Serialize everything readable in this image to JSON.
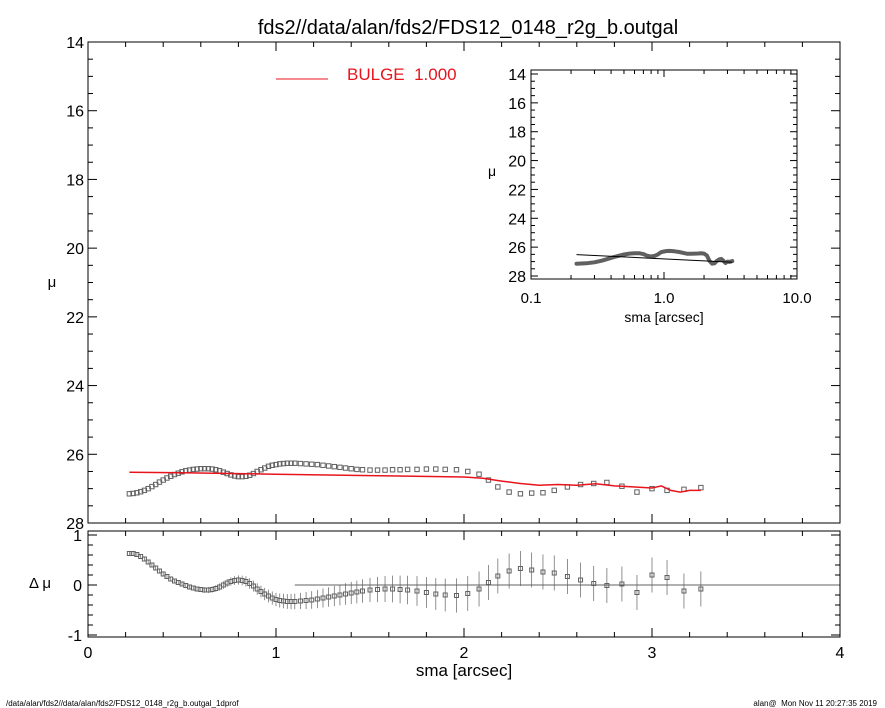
{
  "title": "fds2//data/alan/fds2/FDS12_0148_r2g_b.outgal",
  "footer": {
    "left": "/data/alan/fds2//data/alan/fds2/FDS12_0148_r2g_b.outgal_1dprof",
    "right": "alan@  Mon Nov 11 20:27:35 2019"
  },
  "colors": {
    "model": "#e8141c",
    "data": "#606060",
    "axes": "#000000"
  },
  "chart_data": [
    {
      "id": "main",
      "type": "scatter",
      "xlabel": "",
      "ylabel": "μ",
      "xlim": [
        0,
        4
      ],
      "ylim": [
        28,
        14
      ],
      "yticks": [
        "14",
        "16",
        "18",
        "20",
        "22",
        "24",
        "26",
        "28"
      ],
      "legend": {
        "label": "BULGE  1.000",
        "placement": "top-center"
      },
      "series": [
        {
          "name": "",
          "style": "squares",
          "x": [
            0.22,
            0.24,
            0.26,
            0.28,
            0.3,
            0.32,
            0.34,
            0.36,
            0.38,
            0.4,
            0.42,
            0.44,
            0.46,
            0.48,
            0.5,
            0.52,
            0.54,
            0.56,
            0.58,
            0.6,
            0.62,
            0.64,
            0.66,
            0.68,
            0.7,
            0.72,
            0.74,
            0.76,
            0.78,
            0.8,
            0.82,
            0.84,
            0.86,
            0.88,
            0.9,
            0.92,
            0.94,
            0.96,
            0.98,
            1.0,
            1.02,
            1.04,
            1.06,
            1.08,
            1.1,
            1.13,
            1.16,
            1.19,
            1.22,
            1.25,
            1.28,
            1.31,
            1.34,
            1.37,
            1.4,
            1.43,
            1.46,
            1.5,
            1.54,
            1.58,
            1.62,
            1.66,
            1.7,
            1.75,
            1.8,
            1.85,
            1.9,
            1.96,
            2.02,
            2.08,
            2.13,
            2.18,
            2.24,
            2.3,
            2.36,
            2.42,
            2.48,
            2.55,
            2.62,
            2.69,
            2.76,
            2.84,
            2.92,
            3.0,
            3.08,
            3.17,
            3.26
          ],
          "y": [
            27.15,
            27.14,
            27.12,
            27.09,
            27.05,
            27.0,
            26.94,
            26.88,
            26.81,
            26.75,
            26.69,
            26.64,
            26.59,
            26.55,
            26.51,
            26.48,
            26.46,
            26.44,
            26.43,
            26.42,
            26.42,
            26.42,
            26.43,
            26.45,
            26.48,
            26.52,
            26.56,
            26.6,
            26.63,
            26.65,
            26.65,
            26.64,
            26.61,
            26.56,
            26.5,
            26.45,
            26.4,
            26.35,
            26.32,
            26.3,
            26.28,
            26.27,
            26.26,
            26.26,
            26.26,
            26.27,
            26.28,
            26.29,
            26.3,
            26.32,
            26.34,
            26.36,
            26.38,
            26.4,
            26.42,
            26.44,
            26.45,
            26.46,
            26.46,
            26.46,
            26.45,
            26.45,
            26.44,
            26.44,
            26.43,
            26.43,
            26.44,
            26.45,
            26.5,
            26.58,
            26.75,
            26.95,
            27.1,
            27.15,
            27.13,
            27.12,
            27.05,
            26.95,
            26.88,
            26.85,
            26.82,
            26.93,
            27.1,
            27.0,
            27.05,
            27.02,
            26.97
          ]
        },
        {
          "name": "BULGE  1.000",
          "style": "line",
          "x": [
            0.22,
            0.5,
            1.0,
            1.5,
            2.0,
            2.1,
            2.2,
            2.3,
            2.4,
            2.5,
            2.6,
            2.7,
            2.8,
            2.9,
            3.0,
            3.05,
            3.1,
            3.15,
            3.2,
            3.26
          ],
          "y": [
            26.52,
            26.54,
            26.58,
            26.62,
            26.66,
            26.7,
            26.78,
            26.85,
            26.9,
            26.88,
            26.9,
            26.86,
            26.92,
            26.95,
            26.98,
            26.92,
            27.05,
            27.1,
            27.05,
            27.05
          ]
        }
      ]
    },
    {
      "id": "residual",
      "type": "scatter",
      "xlabel": "sma [arcsec]",
      "ylabel": "Δ μ",
      "xlim": [
        0,
        4
      ],
      "ylim": [
        -1,
        1
      ],
      "xticks": [
        "0",
        "1",
        "2",
        "3",
        "4"
      ],
      "yticks": [
        "1",
        "0",
        "-1"
      ],
      "reference_line": {
        "y": 0,
        "x_start": 1.1,
        "x_end": 4.0
      },
      "series": [
        {
          "name": "",
          "style": "squares_with_errorbars",
          "x": [
            0.22,
            0.24,
            0.26,
            0.28,
            0.3,
            0.32,
            0.34,
            0.36,
            0.38,
            0.4,
            0.42,
            0.44,
            0.46,
            0.48,
            0.5,
            0.52,
            0.54,
            0.56,
            0.58,
            0.6,
            0.62,
            0.64,
            0.66,
            0.68,
            0.7,
            0.72,
            0.74,
            0.76,
            0.78,
            0.8,
            0.82,
            0.84,
            0.86,
            0.88,
            0.9,
            0.92,
            0.94,
            0.96,
            0.98,
            1.0,
            1.02,
            1.04,
            1.06,
            1.08,
            1.1,
            1.13,
            1.16,
            1.19,
            1.22,
            1.25,
            1.28,
            1.31,
            1.34,
            1.37,
            1.4,
            1.43,
            1.46,
            1.5,
            1.54,
            1.58,
            1.62,
            1.66,
            1.7,
            1.75,
            1.8,
            1.85,
            1.9,
            1.96,
            2.02,
            2.08,
            2.13,
            2.18,
            2.24,
            2.3,
            2.36,
            2.42,
            2.48,
            2.55,
            2.62,
            2.69,
            2.76,
            2.84,
            2.92,
            3.0,
            3.08,
            3.17,
            3.26
          ],
          "y": [
            0.63,
            0.63,
            0.61,
            0.57,
            0.52,
            0.46,
            0.4,
            0.34,
            0.28,
            0.22,
            0.17,
            0.12,
            0.08,
            0.05,
            0.02,
            -0.01,
            -0.04,
            -0.06,
            -0.08,
            -0.09,
            -0.1,
            -0.1,
            -0.09,
            -0.07,
            -0.04,
            0.0,
            0.04,
            0.07,
            0.09,
            0.1,
            0.09,
            0.07,
            0.03,
            -0.02,
            -0.08,
            -0.13,
            -0.18,
            -0.22,
            -0.26,
            -0.29,
            -0.31,
            -0.32,
            -0.33,
            -0.33,
            -0.33,
            -0.32,
            -0.31,
            -0.3,
            -0.28,
            -0.26,
            -0.24,
            -0.22,
            -0.2,
            -0.18,
            -0.16,
            -0.14,
            -0.12,
            -0.1,
            -0.09,
            -0.08,
            -0.08,
            -0.09,
            -0.1,
            -0.12,
            -0.15,
            -0.18,
            -0.2,
            -0.21,
            -0.17,
            -0.08,
            0.05,
            0.18,
            0.28,
            0.33,
            0.3,
            0.26,
            0.24,
            0.17,
            0.1,
            0.03,
            -0.01,
            0.02,
            -0.15,
            0.2,
            0.15,
            -0.12,
            -0.08
          ]
        }
      ]
    },
    {
      "id": "inset",
      "type": "line",
      "xlabel": "sma [arcsec]",
      "ylabel": "μ",
      "xscale": "log",
      "xlim": [
        0.1,
        10.0
      ],
      "ylim": [
        28,
        14
      ],
      "xticks": [
        "0.1",
        "1.0",
        "10.0"
      ],
      "yticks": [
        "14",
        "16",
        "18",
        "20",
        "22",
        "24",
        "26",
        "28"
      ],
      "series": [
        {
          "name": "",
          "style": "thick_profile",
          "x": [
            0.22,
            0.26,
            0.3,
            0.34,
            0.38,
            0.42,
            0.46,
            0.5,
            0.55,
            0.6,
            0.65,
            0.7,
            0.75,
            0.8,
            0.85,
            0.9,
            0.95,
            1.0,
            1.05,
            1.1,
            1.2,
            1.3,
            1.4,
            1.5,
            1.6,
            1.7,
            1.8,
            1.9,
            2.0,
            2.1,
            2.2,
            2.3,
            2.4,
            2.5,
            2.6,
            2.7,
            2.8,
            2.9,
            3.0,
            3.1,
            3.26
          ],
          "y": [
            27.15,
            27.12,
            27.05,
            26.94,
            26.81,
            26.69,
            26.59,
            26.51,
            26.45,
            26.42,
            26.42,
            26.48,
            26.6,
            26.65,
            26.61,
            26.5,
            26.35,
            26.3,
            26.27,
            26.26,
            26.29,
            26.34,
            26.4,
            26.46,
            26.46,
            26.45,
            26.44,
            26.43,
            26.45,
            26.58,
            26.95,
            27.15,
            27.12,
            26.95,
            26.85,
            26.82,
            26.95,
            27.1,
            27.0,
            27.02,
            26.97
          ]
        },
        {
          "name": "",
          "style": "line",
          "x": [
            0.22,
            3.26
          ],
          "y": [
            26.52,
            27.05
          ]
        }
      ]
    }
  ]
}
